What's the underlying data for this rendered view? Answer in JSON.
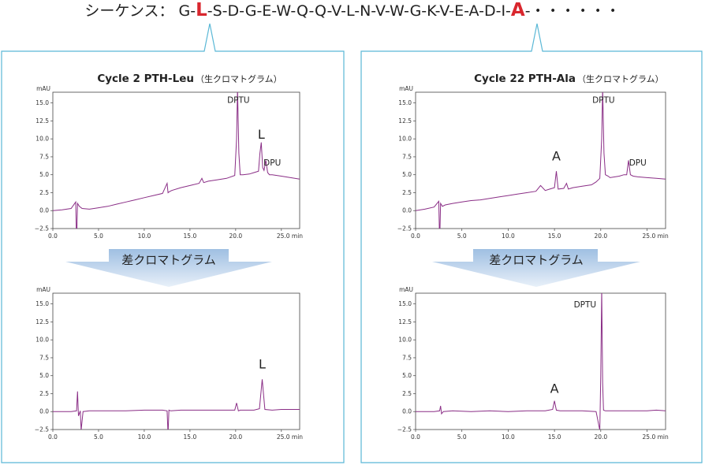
{
  "sequence": {
    "prefix": "シーケンス：",
    "tokens": [
      {
        "t": "G-"
      },
      {
        "t": "L",
        "hl": true
      },
      {
        "t": "-S-D-G-E-W-Q-Q-V-L-N-V-W-G-K-V-E-A-D-I-"
      },
      {
        "t": "A",
        "hl": true
      },
      {
        "t": "-・・・・・・"
      }
    ],
    "normal_color": "#222222",
    "highlight_color": "#d9272e"
  },
  "colors": {
    "frame": "#5bb8d6",
    "trace": "#8a2e86",
    "arrow_top": "#9fbfe2",
    "arrow_bottom": "#e8f0f9"
  },
  "panels": [
    {
      "title_bold": "Cycle 2 PTH-Leu",
      "title_note": "（生クロマトグラム）",
      "diff_label": "差クロマトグラム"
    },
    {
      "title_bold": "Cycle 22 PTH-Ala",
      "title_note": "（生クロマトグラム）",
      "diff_label": "差クロマトグラム"
    }
  ],
  "chart_data": [
    {
      "type": "line",
      "name": "cycle2-raw",
      "ylabel": "mAU",
      "xlabel": "min",
      "xlim": [
        0,
        27
      ],
      "ylim": [
        -2.5,
        16.5
      ],
      "xticks": [
        "0.0",
        "5.0",
        "10.0",
        "15.0",
        "20.0",
        "25.0 min"
      ],
      "yticks": [
        "−2.5",
        "0.0",
        "2.5",
        "5.0",
        "7.5",
        "10.0",
        "12.5",
        "15.0"
      ],
      "annotations": [
        {
          "text": "DPTU",
          "x": 20.3,
          "y": 15.0,
          "big": false
        },
        {
          "text": "L",
          "x": 22.8,
          "y": 10.0,
          "big": true
        },
        {
          "text": "DPU",
          "x": 24.0,
          "y": 6.3,
          "big": false
        }
      ],
      "x": [
        0,
        1,
        2,
        2.5,
        2.6,
        2.7,
        2.9,
        3.2,
        4,
        5,
        6,
        7,
        8,
        9,
        10,
        11,
        12,
        12.5,
        12.6,
        12.7,
        13,
        14,
        15,
        16,
        16.3,
        16.5,
        17,
        18,
        19,
        19.9,
        20.1,
        20.2,
        20.35,
        20.5,
        20.8,
        21.5,
        22.0,
        22.5,
        22.65,
        22.8,
        22.95,
        23.1,
        23.3,
        23.5,
        23.7,
        24,
        25,
        26,
        27
      ],
      "y": [
        0,
        0.1,
        0.3,
        1.2,
        -4.5,
        1.0,
        0.6,
        0.3,
        0.2,
        0.4,
        0.6,
        0.9,
        1.2,
        1.5,
        1.8,
        2.1,
        2.4,
        3.8,
        2.5,
        2.6,
        2.8,
        3.2,
        3.5,
        3.8,
        4.5,
        3.9,
        4.1,
        4.3,
        4.5,
        4.9,
        10.0,
        17.0,
        8.0,
        5.0,
        5.0,
        5.1,
        5.3,
        5.5,
        8.0,
        9.5,
        6.0,
        5.6,
        7.0,
        5.3,
        5.0,
        5.0,
        4.8,
        4.6,
        4.4
      ]
    },
    {
      "type": "line",
      "name": "cycle2-diff",
      "ylabel": "mAU",
      "xlabel": "min",
      "xlim": [
        0,
        27
      ],
      "ylim": [
        -2.5,
        16.5
      ],
      "xticks": [
        "0.0",
        "5.0",
        "10.0",
        "15.0",
        "20.0",
        "25.0 min"
      ],
      "yticks": [
        "−2.5",
        "0.0",
        "2.5",
        "5.0",
        "7.5",
        "10.0",
        "12.5",
        "15.0"
      ],
      "annotations": [
        {
          "text": "L",
          "x": 22.9,
          "y": 6.0,
          "big": true
        }
      ],
      "x": [
        0,
        2,
        2.6,
        2.7,
        2.8,
        3.0,
        3.1,
        3.3,
        4,
        6,
        8,
        10,
        12,
        12.5,
        12.6,
        12.7,
        12.9,
        14,
        16,
        18,
        19.9,
        20.1,
        20.3,
        20.5,
        22,
        22.6,
        22.9,
        23.2,
        24,
        25,
        27
      ],
      "y": [
        0,
        0,
        0.1,
        2.8,
        -0.6,
        0.1,
        -2.6,
        0.0,
        0.1,
        0.1,
        0.1,
        0.2,
        0.2,
        0.1,
        -3.2,
        0.2,
        0.1,
        0.2,
        0.2,
        0.2,
        0.2,
        1.2,
        0.1,
        0.2,
        0.2,
        0.4,
        4.5,
        0.3,
        0.2,
        0.3,
        0.3
      ]
    },
    {
      "type": "line",
      "name": "cycle22-raw",
      "ylabel": "mAU",
      "xlabel": "min",
      "xlim": [
        0,
        27
      ],
      "ylim": [
        -2.5,
        16.5
      ],
      "xticks": [
        "0.0",
        "5.0",
        "10.0",
        "15.0",
        "20.0",
        "25.0 min"
      ],
      "yticks": [
        "−2.5",
        "0.0",
        "2.5",
        "5.0",
        "7.5",
        "10.0",
        "12.5",
        "15.0"
      ],
      "annotations": [
        {
          "text": "DPTU",
          "x": 20.3,
          "y": 15.0,
          "big": false
        },
        {
          "text": "A",
          "x": 15.2,
          "y": 7.0,
          "big": true
        },
        {
          "text": "DPU",
          "x": 24.0,
          "y": 6.3,
          "big": false
        }
      ],
      "x": [
        0,
        1,
        2,
        2.5,
        2.6,
        2.7,
        2.9,
        3.2,
        4,
        5,
        6,
        7,
        8,
        9,
        10,
        11,
        12,
        13,
        13.5,
        14,
        14.5,
        15.0,
        15.2,
        15.4,
        16,
        16.3,
        16.5,
        17,
        18,
        19,
        19.5,
        19.9,
        20.1,
        20.2,
        20.35,
        20.5,
        20.8,
        21,
        22,
        22.5,
        22.8,
        23.0,
        23.2,
        23.5,
        24,
        25,
        26,
        27
      ],
      "y": [
        0,
        0.2,
        0.5,
        1.3,
        -4.5,
        1.0,
        0.6,
        0.8,
        1.0,
        1.2,
        1.4,
        1.5,
        1.7,
        1.9,
        2.1,
        2.3,
        2.5,
        2.7,
        3.5,
        2.8,
        3.0,
        3.2,
        5.5,
        3.0,
        3.1,
        3.8,
        3.0,
        3.2,
        3.4,
        3.6,
        4.0,
        4.5,
        10.0,
        17.0,
        8.0,
        5.0,
        4.8,
        4.6,
        4.8,
        5.0,
        5.0,
        7.0,
        5.0,
        4.8,
        4.7,
        4.6,
        4.5,
        4.4
      ]
    },
    {
      "type": "line",
      "name": "cycle22-diff",
      "ylabel": "mAU",
      "xlabel": "min",
      "xlim": [
        0,
        27
      ],
      "ylim": [
        -2.5,
        16.5
      ],
      "xticks": [
        "0.0",
        "5.0",
        "10.0",
        "15.0",
        "20.0",
        "25.0 min"
      ],
      "yticks": [
        "−2.5",
        "0.0",
        "2.5",
        "5.0",
        "7.5",
        "10.0",
        "12.5",
        "15.0"
      ],
      "annotations": [
        {
          "text": "DPTU",
          "x": 18.3,
          "y": 14.5,
          "big": false
        },
        {
          "text": "A",
          "x": 15.0,
          "y": 2.6,
          "big": true
        }
      ],
      "x": [
        0,
        2,
        2.6,
        2.7,
        2.8,
        3.0,
        4,
        6,
        8,
        10,
        12,
        14,
        14.8,
        15.0,
        15.2,
        15.6,
        16,
        18,
        19.5,
        19.9,
        20.0,
        20.1,
        20.2,
        20.3,
        20.5,
        21,
        22,
        24,
        25,
        26,
        27
      ],
      "y": [
        0,
        0,
        0.1,
        0.8,
        -0.3,
        0.0,
        0.1,
        0.0,
        0.1,
        0.0,
        0.1,
        0.1,
        0.3,
        1.5,
        0.2,
        0.1,
        0.1,
        0.1,
        0.0,
        -2.6,
        5.0,
        17.0,
        4.0,
        0.2,
        0.1,
        0.1,
        0.1,
        0.1,
        0.1,
        0.2,
        0.1
      ]
    }
  ]
}
